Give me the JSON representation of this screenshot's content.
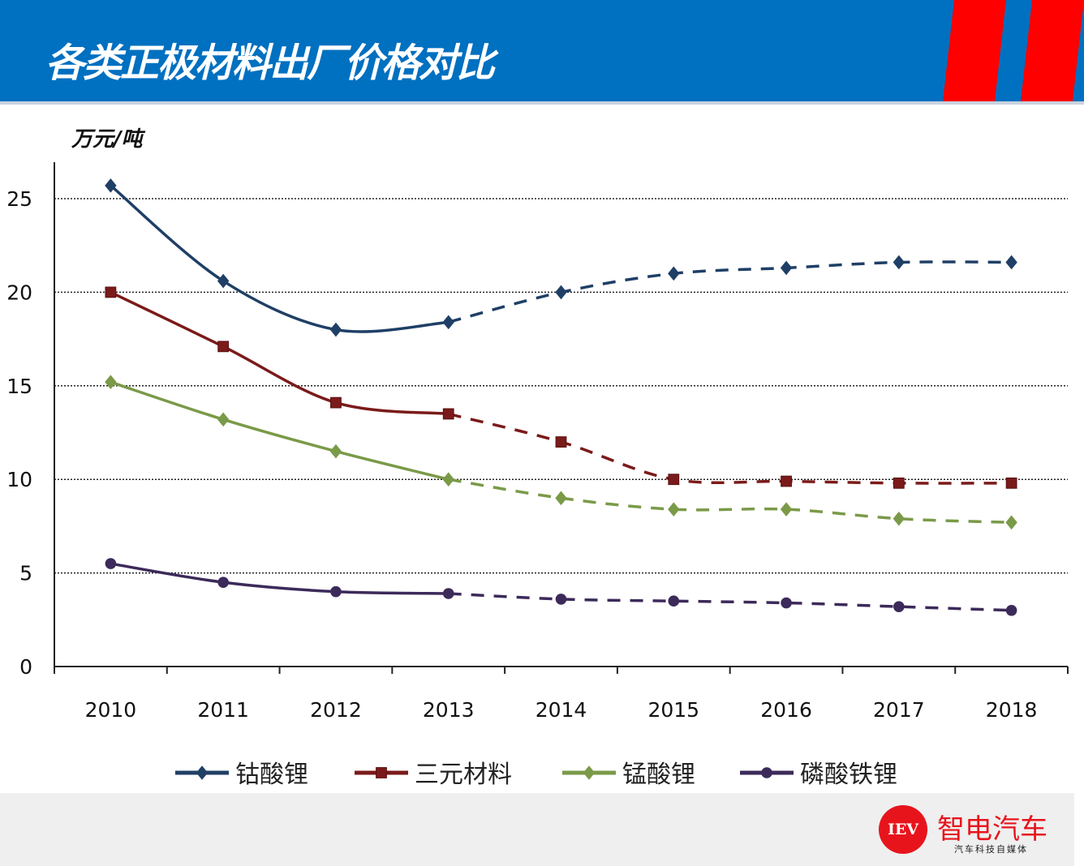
{
  "header": {
    "title": "各类正极材料出厂价格对比",
    "accent_colors": [
      "#0070c0",
      "#ff0000"
    ]
  },
  "chart_data": {
    "type": "line",
    "title": "",
    "ylabel": "万元/吨",
    "xlabel": "",
    "categories": [
      "2010",
      "2011",
      "2012",
      "2013",
      "2014",
      "2015",
      "2016",
      "2017",
      "2018"
    ],
    "ylim": [
      0,
      25
    ],
    "yticks": [
      "0",
      "5",
      "10",
      "15",
      "20",
      "25"
    ],
    "grid": "horizontal dotted",
    "legend": "bottom",
    "note_solid_until": "2013",
    "series": [
      {
        "name": "钴酸锂",
        "color": "#1f3f66",
        "marker": "diamond",
        "values": [
          25.7,
          20.6,
          18.0,
          18.4,
          20.0,
          21.0,
          21.3,
          21.6,
          21.6
        ]
      },
      {
        "name": "三元材料",
        "color": "#7b1a1a",
        "marker": "square",
        "values": [
          20.0,
          17.1,
          14.1,
          13.5,
          12.0,
          10.0,
          9.9,
          9.8,
          9.8
        ]
      },
      {
        "name": "锰酸锂",
        "color": "#7a9a48",
        "marker": "diamond",
        "values": [
          15.2,
          13.2,
          11.5,
          10.0,
          9.0,
          8.4,
          8.4,
          7.9,
          7.7
        ]
      },
      {
        "name": "磷酸铁锂",
        "color": "#3c2a5a",
        "marker": "circle",
        "values": [
          5.5,
          4.5,
          4.0,
          3.9,
          3.6,
          3.5,
          3.4,
          3.2,
          3.0
        ]
      }
    ]
  },
  "footer": {
    "logo_text": "IEV",
    "brand": "智电汽车",
    "tagline": "汽车科技自媒体"
  }
}
